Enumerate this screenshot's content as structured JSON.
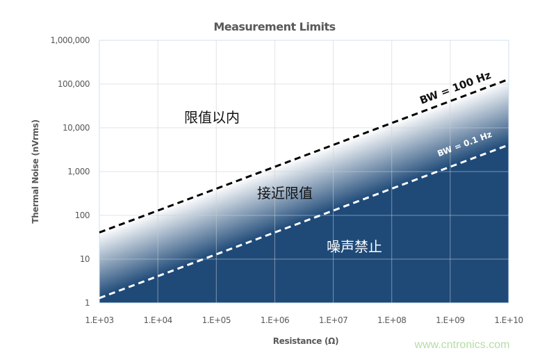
{
  "chart_data": {
    "type": "line",
    "title": "Measurement Limits",
    "xlabel": "Resistance (Ω)",
    "ylabel": "Thermal Noise (nVrms)",
    "xscale": "log",
    "yscale": "log",
    "xlim": [
      1000,
      10000000000
    ],
    "ylim": [
      1,
      1000000
    ],
    "grid": true,
    "x_tick_labels": [
      "1.E+03",
      "1.E+04",
      "1.E+05",
      "1.E+06",
      "1.E+07",
      "1.E+08",
      "1.E+09",
      "1.E+10"
    ],
    "y_tick_labels": [
      "1",
      "10",
      "100",
      "1,000",
      "10,000",
      "100,000",
      "1,000,000"
    ],
    "series": [
      {
        "name": "BW = 100 Hz",
        "x": [
          1000,
          10000000000
        ],
        "y": [
          40.7,
          128700
        ],
        "style": "dashed",
        "color": "#000000"
      },
      {
        "name": "BW = 0.1 Hz",
        "x": [
          1000,
          10000000000
        ],
        "y": [
          1.29,
          4070
        ],
        "style": "dashed",
        "color": "#ffffff"
      }
    ],
    "regions": [
      {
        "label": "限值以内",
        "color": "#ffffff"
      },
      {
        "label": "接近限值",
        "color": "gradient"
      },
      {
        "label": "噪声禁止",
        "color": "#1f4a78"
      }
    ]
  },
  "watermark": "www.cntronics.com"
}
